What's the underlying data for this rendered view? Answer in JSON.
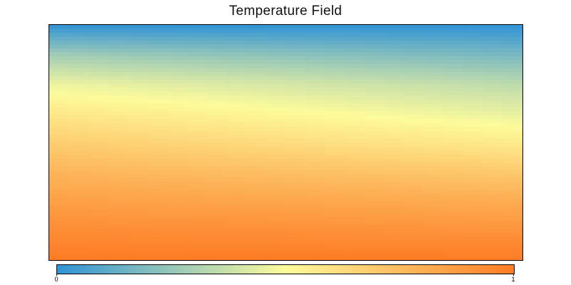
{
  "chart_data": {
    "type": "heatmap",
    "title": "Temperature Field",
    "xlabel": "",
    "ylabel": "",
    "grid": false,
    "x_axis_visible": false,
    "y_axis_visible": false,
    "colorbar": {
      "position": "bottom",
      "range": [
        0,
        1
      ],
      "tick_labels": [
        "0",
        "1"
      ],
      "colors": [
        "#3093d6",
        "#fdfb9b",
        "#fd7c25"
      ]
    },
    "field": {
      "description_rows": "value by row from top (0) to bottom (1); left and right columns",
      "y": [
        0.0,
        0.13,
        0.25,
        0.38,
        0.5,
        0.63,
        0.75,
        0.88,
        1.0
      ],
      "left": [
        0.0,
        0.28,
        0.46,
        0.58,
        0.68,
        0.78,
        0.86,
        0.94,
        1.0
      ],
      "right": [
        0.0,
        0.18,
        0.34,
        0.45,
        0.56,
        0.7,
        0.81,
        0.91,
        1.0
      ]
    }
  }
}
